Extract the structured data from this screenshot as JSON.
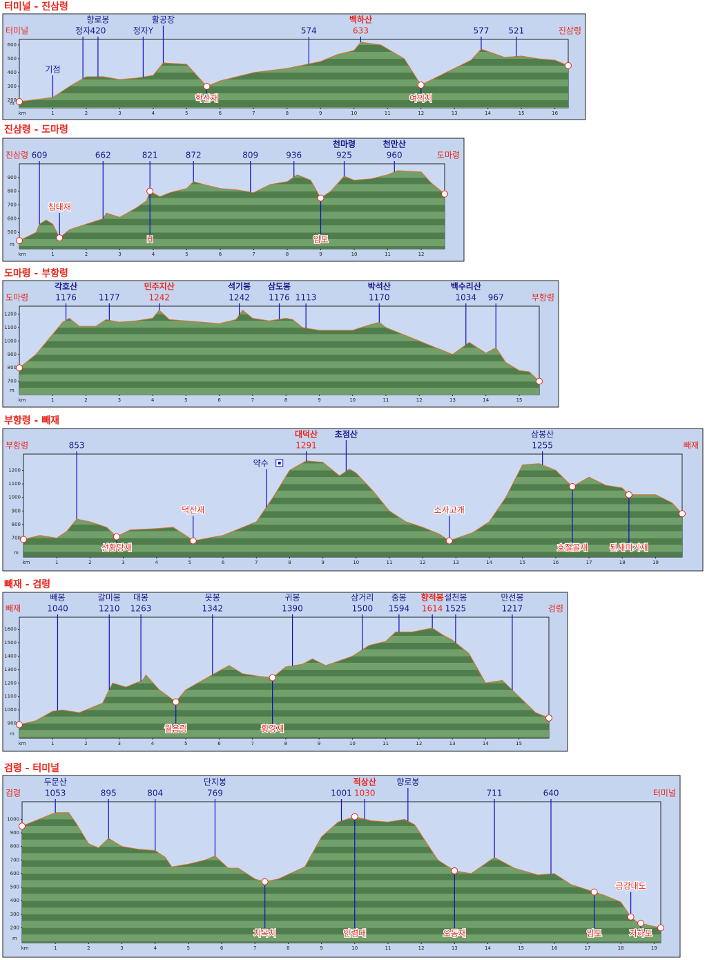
{
  "chart_data": [
    {
      "type": "area",
      "title": "터미널 - 진삼령",
      "xlabel": "km",
      "ylabel": "m",
      "start": "터미널",
      "end": "진삼령",
      "x": [
        0,
        1,
        1.5,
        2,
        2.5,
        3,
        3.5,
        4,
        4.3,
        5,
        5.6,
        6,
        7,
        8,
        8.6,
        9,
        9.5,
        10,
        10.2,
        10.8,
        11.5,
        12,
        12.5,
        13,
        13.5,
        13.8,
        14.5,
        15,
        15.5,
        16,
        16.4
      ],
      "values": [
        190,
        220,
        300,
        370,
        370,
        350,
        360,
        380,
        470,
        460,
        300,
        340,
        400,
        430,
        460,
        480,
        530,
        560,
        620,
        600,
        500,
        310,
        370,
        430,
        490,
        570,
        510,
        520,
        500,
        490,
        450
      ],
      "xlim": [
        0,
        16.4
      ],
      "ylim": [
        145,
        640
      ],
      "xticks": [
        1,
        2,
        3,
        4,
        5,
        6,
        7,
        8,
        9,
        10,
        11,
        12,
        13,
        14,
        15,
        16
      ],
      "yticks": [
        200,
        300,
        400,
        500,
        600
      ],
      "peaks": [
        {
          "name": "기점",
          "km": 1,
          "row": "low"
        },
        {
          "name": "정자",
          "km": 1.9,
          "row": "lower"
        },
        {
          "name": "향로봉",
          "elev": 420,
          "km": 2.35,
          "style": "plain"
        },
        {
          "name": "정자Y",
          "km": 3.7,
          "row": "lower"
        },
        {
          "name": "활공장",
          "km": 4.3
        },
        {
          "elev": 574,
          "km": 8.65
        },
        {
          "name": "백하산",
          "elev": 633,
          "km": 10.2,
          "style": "red"
        },
        {
          "elev": 577,
          "km": 13.8
        },
        {
          "elev": 521,
          "km": 14.85
        }
      ],
      "passes": [
        {
          "name": "학산재",
          "km": 5.6,
          "side": "below"
        },
        {
          "name": "여의치",
          "km": 12,
          "side": "below"
        }
      ]
    },
    {
      "type": "area",
      "title": "진삼령 - 도마령",
      "xlabel": "km",
      "ylabel": "m",
      "start": "진삼령",
      "end": "도마령",
      "x": [
        0,
        0.5,
        0.6,
        0.8,
        1,
        1.2,
        1.5,
        2,
        2.5,
        2.6,
        3,
        3.5,
        3.8,
        3.9,
        4.2,
        4.5,
        5,
        5.2,
        5.5,
        6,
        6.5,
        7,
        7.5,
        8,
        8.3,
        8.7,
        9,
        9.3,
        9.7,
        10,
        10.5,
        11,
        11.3,
        12,
        12.3,
        12.7
      ],
      "values": [
        440,
        500,
        560,
        590,
        560,
        460,
        520,
        560,
        600,
        640,
        610,
        680,
        730,
        800,
        760,
        790,
        820,
        870,
        850,
        820,
        810,
        790,
        850,
        870,
        920,
        880,
        750,
        800,
        910,
        880,
        890,
        920,
        950,
        940,
        860,
        780
      ],
      "xlim": [
        0,
        12.7
      ],
      "ylim": [
        380,
        1000
      ],
      "xticks": [
        1,
        2,
        3,
        4,
        5,
        6,
        7,
        8,
        9,
        10,
        11,
        12
      ],
      "yticks": [
        500,
        600,
        700,
        800,
        900
      ],
      "peaks": [
        {
          "elev": 609,
          "km": 0.6
        },
        {
          "elev": 662,
          "km": 2.5
        },
        {
          "elev": 821,
          "km": 3.9
        },
        {
          "elev": 872,
          "km": 5.2
        },
        {
          "elev": 809,
          "km": 6.9
        },
        {
          "elev": 936,
          "km": 8.2
        },
        {
          "name": "천마령",
          "elev": 925,
          "km": 9.7,
          "style": "bold"
        },
        {
          "name": "천만산",
          "elev": 960,
          "km": 11.2,
          "style": "bold"
        }
      ],
      "passes": [
        {
          "name": "침태재",
          "km": 1.2,
          "side": "above"
        },
        {
          "name": "H",
          "km": 3.9,
          "side": "below"
        },
        {
          "name": "임도",
          "km": 9,
          "side": "below"
        }
      ]
    },
    {
      "type": "area",
      "title": "도마령 - 부항령",
      "xlabel": "km",
      "ylabel": "m",
      "start": "도마령",
      "end": "부항령",
      "x": [
        0,
        0.5,
        1,
        1.3,
        1.5,
        1.8,
        2.3,
        2.6,
        3,
        3.5,
        4,
        4.2,
        4.5,
        5,
        6,
        6.5,
        6.7,
        7,
        7.5,
        8,
        8.2,
        8.5,
        9,
        10,
        10.5,
        10.8,
        11,
        12,
        12.5,
        13,
        13.5,
        14,
        14.3,
        14.6,
        15,
        15.3,
        15.6
      ],
      "values": [
        800,
        900,
        1050,
        1140,
        1170,
        1110,
        1110,
        1160,
        1140,
        1150,
        1170,
        1230,
        1160,
        1150,
        1130,
        1160,
        1230,
        1170,
        1150,
        1170,
        1160,
        1100,
        1080,
        1080,
        1120,
        1140,
        1100,
        1000,
        950,
        900,
        990,
        910,
        950,
        840,
        780,
        770,
        700
      ],
      "xlim": [
        0,
        15.6
      ],
      "ylim": [
        600,
        1260
      ],
      "xticks": [
        1,
        2,
        3,
        4,
        5,
        6,
        7,
        8,
        9,
        10,
        11,
        12,
        13,
        14,
        15
      ],
      "yticks": [
        700,
        800,
        900,
        1000,
        1100,
        1200
      ],
      "peaks": [
        {
          "name": "각호산",
          "elev": 1176,
          "km": 1.4,
          "style": "bold"
        },
        {
          "elev": 1177,
          "km": 2.7
        },
        {
          "name": "민주지산",
          "elev": 1242,
          "km": 4.2,
          "style": "red"
        },
        {
          "name": "석기봉",
          "elev": 1242,
          "km": 6.6,
          "style": "bold"
        },
        {
          "name": "삼도봉",
          "elev": 1176,
          "km": 7.8,
          "style": "bold"
        },
        {
          "elev": 1113,
          "km": 8.6
        },
        {
          "name": "박석산",
          "elev": 1170,
          "km": 10.8,
          "style": "bold"
        },
        {
          "name": "백수리산",
          "elev": 1034,
          "km": 13.4,
          "style": "bold"
        },
        {
          "elev": 967,
          "km": 14.3
        }
      ],
      "passes": []
    },
    {
      "type": "area",
      "title": "부항령 - 빼재",
      "xlabel": "km",
      "ylabel": "m",
      "start": "부항령",
      "end": "빼재",
      "x": [
        0,
        0.5,
        1,
        1.3,
        1.6,
        2,
        2.5,
        2.8,
        3.2,
        4,
        4.5,
        5,
        5.1,
        6,
        7,
        7.5,
        8,
        8.5,
        9,
        9.5,
        9.8,
        10,
        10.5,
        11,
        11.5,
        12,
        12.5,
        12.8,
        13.5,
        14,
        14.5,
        15,
        15.5,
        16,
        16.5,
        17,
        17.5,
        18,
        18.2,
        19,
        19.5,
        19.8
      ],
      "values": [
        690,
        720,
        700,
        750,
        840,
        820,
        780,
        710,
        760,
        770,
        780,
        700,
        680,
        720,
        820,
        1000,
        1200,
        1270,
        1260,
        1160,
        1210,
        1180,
        1050,
        900,
        820,
        780,
        730,
        680,
        740,
        820,
        1000,
        1240,
        1250,
        1200,
        1080,
        1150,
        1090,
        1070,
        1020,
        1020,
        960,
        880
      ],
      "xlim": [
        0,
        19.8
      ],
      "ylim": [
        560,
        1320
      ],
      "xticks": [
        1,
        2,
        3,
        4,
        5,
        6,
        7,
        8,
        9,
        10,
        11,
        12,
        13,
        14,
        15,
        16,
        17,
        18,
        19
      ],
      "yticks": [
        700,
        800,
        900,
        1000,
        1100,
        1200
      ],
      "peaks": [
        {
          "elev": 853,
          "km": 1.6
        },
        {
          "name": "약수",
          "km": 7.3,
          "row": "lower",
          "icon": true
        },
        {
          "name": "대덕산",
          "elev": 1291,
          "km": 8.5,
          "style": "red"
        },
        {
          "name": "초점산",
          "km": 9.7,
          "style": "bold"
        },
        {
          "name": "삼봉산",
          "elev": 1255,
          "km": 15.6
        }
      ],
      "passes": [
        {
          "name": "선황당재",
          "km": 2.8,
          "side": "below"
        },
        {
          "name": "덕산재",
          "km": 5.1,
          "side": "above"
        },
        {
          "name": "소사고개",
          "km": 12.8,
          "side": "above"
        },
        {
          "name": "호절골재",
          "km": 16.5,
          "side": "below"
        },
        {
          "name": "된새미기재",
          "km": 18.2,
          "side": "below"
        }
      ]
    },
    {
      "type": "area",
      "title": "빼재 - 검령",
      "xlabel": "km",
      "ylabel": "m",
      "start": "빼재",
      "end": "검령",
      "x": [
        0,
        0.5,
        1,
        1.3,
        1.8,
        2,
        2.5,
        2.7,
        2.8,
        3.2,
        3.7,
        3.8,
        4.2,
        4.7,
        5,
        5.5,
        6,
        6.3,
        6.7,
        7.2,
        7.6,
        8,
        8.5,
        8.8,
        9.2,
        10,
        10.5,
        11,
        11.3,
        11.8,
        12.4,
        12.7,
        13,
        13.5,
        14,
        14.5,
        15,
        15.5,
        15.9
      ],
      "values": [
        890,
        920,
        990,
        1000,
        980,
        1000,
        1050,
        1150,
        1200,
        1170,
        1220,
        1260,
        1150,
        1060,
        1150,
        1220,
        1290,
        1330,
        1270,
        1250,
        1240,
        1320,
        1340,
        1380,
        1330,
        1400,
        1480,
        1510,
        1580,
        1580,
        1610,
        1560,
        1520,
        1420,
        1200,
        1220,
        1100,
        980,
        940
      ],
      "xlim": [
        0,
        15.9
      ],
      "ylim": [
        790,
        1690
      ],
      "xticks": [
        1,
        2,
        3,
        4,
        5,
        6,
        7,
        8,
        9,
        10,
        11,
        12,
        13,
        14,
        15
      ],
      "yticks": [
        900,
        1000,
        1100,
        1200,
        1300,
        1400,
        1500,
        1600
      ],
      "peaks": [
        {
          "name": "빼봉",
          "elev": 1040,
          "km": 1.15
        },
        {
          "name": "갈미봉",
          "elev": 1210,
          "km": 2.7
        },
        {
          "name": "대봉",
          "elev": 1263,
          "km": 3.65
        },
        {
          "name": "못봉",
          "elev": 1342,
          "km": 5.8
        },
        {
          "name": "귀봉",
          "elev": 1390,
          "km": 8.2
        },
        {
          "name": "삼거리",
          "elev": 1500,
          "km": 10.3
        },
        {
          "name": "중봉",
          "elev": 1594,
          "km": 11.4
        },
        {
          "name": "향적봉",
          "elev": 1614,
          "km": 12.4,
          "style": "red"
        },
        {
          "name": "설천봉",
          "elev": 1525,
          "km": 13.1
        },
        {
          "name": "만선봉",
          "elev": 1217,
          "km": 14.8
        }
      ],
      "passes": [
        {
          "name": "월음령",
          "km": 4.7,
          "side": "below"
        },
        {
          "name": "횡경재",
          "km": 7.6,
          "side": "below"
        }
      ]
    },
    {
      "type": "area",
      "title": "검령 - 터미널",
      "xlabel": "km",
      "ylabel": "m",
      "start": "검령",
      "end": "터미널",
      "x": [
        0,
        0.5,
        1,
        1.4,
        1.6,
        2,
        2.3,
        2.6,
        3,
        3.5,
        4,
        4.3,
        4.5,
        5,
        5.5,
        5.8,
        6.2,
        6.5,
        7,
        7.3,
        7.7,
        8.5,
        9,
        9.5,
        10,
        10.5,
        11,
        11.5,
        11.8,
        12.5,
        13,
        13.5,
        14.2,
        14.8,
        15.5,
        16,
        16.5,
        17,
        17.5,
        18,
        18.3,
        18.5,
        19,
        19.2
      ],
      "values": [
        950,
        1000,
        1050,
        1050,
        980,
        820,
        790,
        860,
        800,
        780,
        770,
        720,
        650,
        670,
        700,
        730,
        640,
        640,
        560,
        540,
        560,
        650,
        870,
        980,
        1020,
        990,
        980,
        1000,
        960,
        700,
        620,
        600,
        720,
        640,
        590,
        600,
        520,
        480,
        440,
        390,
        280,
        240,
        210,
        200
      ],
      "xlim": [
        0,
        19.2
      ],
      "ylim": [
        90,
        1130
      ],
      "xticks": [
        1,
        2,
        3,
        4,
        5,
        6,
        7,
        8,
        9,
        10,
        11,
        12,
        13,
        14,
        15,
        16,
        17,
        18,
        19
      ],
      "yticks": [
        200,
        300,
        400,
        500,
        600,
        700,
        800,
        900,
        1000
      ],
      "peaks": [
        {
          "name": "두문산",
          "elev": 1053,
          "km": 1.0
        },
        {
          "elev": 895,
          "km": 2.6
        },
        {
          "elev": 804,
          "km": 4.0
        },
        {
          "name": "단지봉",
          "elev": 769,
          "km": 5.8
        },
        {
          "elev": 1001,
          "km": 9.6
        },
        {
          "name": "적상산",
          "elev": 1030,
          "km": 10.3,
          "style": "red"
        },
        {
          "name": "향로봉",
          "km": 11.6
        },
        {
          "elev": 711,
          "km": 14.2
        },
        {
          "elev": 640,
          "km": 15.9
        }
      ],
      "passes": [
        {
          "name": "치목치",
          "km": 7.3,
          "side": "below"
        },
        {
          "name": "안렴대",
          "km": 10.0,
          "side": "below"
        },
        {
          "name": "오동재",
          "km": 13,
          "side": "below"
        },
        {
          "name": "임도",
          "km": 17.2,
          "side": "below"
        },
        {
          "name": "금강대도",
          "km": 18.3,
          "side": "above"
        },
        {
          "name": "지하도",
          "km": 18.6,
          "side": "below"
        }
      ]
    }
  ]
}
